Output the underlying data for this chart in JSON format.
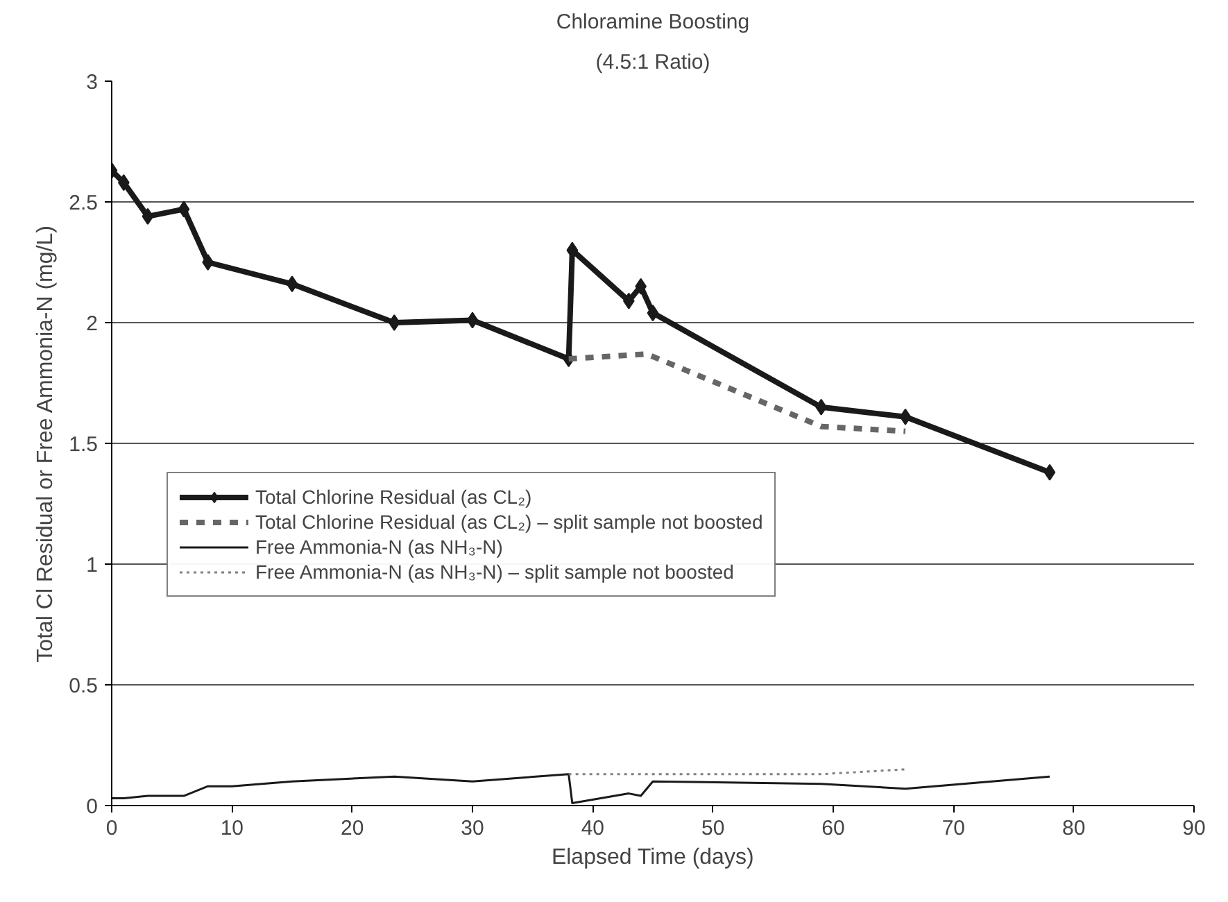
{
  "chart_data": {
    "type": "line",
    "title": "Chloramine Boosting",
    "subtitle": "(4.5:1 Ratio)",
    "xlabel": "Elapsed Time (days)",
    "ylabel": "Total Cl Residual or Free Ammonia-N (mg/L)",
    "xlim": [
      0,
      90
    ],
    "xticks": [
      0,
      10,
      20,
      30,
      40,
      50,
      60,
      70,
      80,
      90
    ],
    "ylim": [
      0,
      3
    ],
    "yticks": [
      0,
      0.5,
      1,
      1.5,
      2,
      2.5,
      3
    ],
    "grid": "y",
    "legend": "left",
    "series": [
      {
        "name": "Total Chlorine Residual (as CL₂)",
        "color": "#1a1a1a",
        "marker": "diamond",
        "line_style": "solid",
        "x": [
          0,
          1,
          3,
          6,
          8,
          15,
          23.5,
          30,
          38,
          38.3,
          43,
          44,
          45,
          59,
          66,
          78
        ],
        "values": [
          2.63,
          2.58,
          2.44,
          2.47,
          2.25,
          2.16,
          2.0,
          2.01,
          1.85,
          2.3,
          2.09,
          2.15,
          2.04,
          1.65,
          1.61,
          1.38
        ]
      },
      {
        "name": "Total Chlorine Residual (as CL₂) – split sample not boosted",
        "color": "#666666",
        "marker": "none",
        "line_style": "dashed",
        "x": [
          38,
          44.5,
          59,
          66
        ],
        "values": [
          1.85,
          1.87,
          1.57,
          1.55
        ]
      },
      {
        "name": "Free Ammonia-N (as NH₃-N)",
        "color": "#1a1a1a",
        "marker": "none",
        "line_style": "solid",
        "x": [
          0,
          1,
          3,
          6,
          8,
          10,
          15,
          23.5,
          30,
          38,
          38.3,
          43,
          44,
          45,
          59,
          66,
          78
        ],
        "values": [
          0.03,
          0.03,
          0.04,
          0.04,
          0.08,
          0.08,
          0.1,
          0.12,
          0.1,
          0.13,
          0.01,
          0.05,
          0.04,
          0.1,
          0.09,
          0.07,
          0.12
        ]
      },
      {
        "name": "Free Ammonia-N (as NH₃-N) – split sample not boosted",
        "color": "#808080",
        "marker": "none",
        "line_style": "dotted",
        "x": [
          38,
          59,
          66
        ],
        "values": [
          0.13,
          0.13,
          0.15
        ]
      }
    ]
  }
}
